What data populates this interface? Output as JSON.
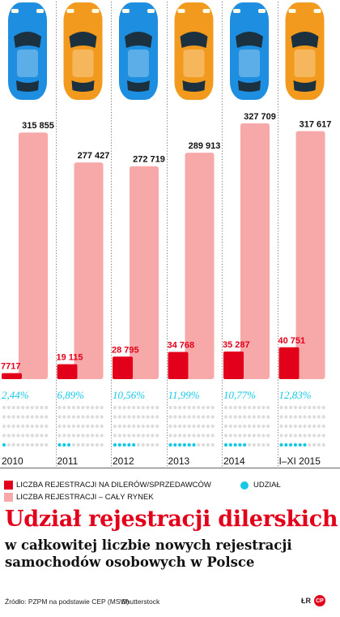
{
  "chart_data": {
    "type": "bar",
    "categories": [
      "2010",
      "2011",
      "2012",
      "2013",
      "2014",
      "I–XI 2015"
    ],
    "series": [
      {
        "name": "LICZBA REJESTRACJI NA DILERÓW/SPRZEDAWCÓW",
        "values": [
          7717,
          19115,
          28795,
          34768,
          35287,
          40751
        ],
        "labels": [
          "7717",
          "19 115",
          "28 795",
          "34 768",
          "35 287",
          "40 751"
        ],
        "color": "#e3001b"
      },
      {
        "name": "LICZBA REJESTRACJI – CAŁY RYNEK",
        "values": [
          315855,
          277427,
          272719,
          289913,
          327709,
          317617
        ],
        "labels": [
          "315 855",
          "277 427",
          "272 719",
          "289 913",
          "327 709",
          "317 617"
        ],
        "color": "#f7a9a9"
      }
    ],
    "share": {
      "name": "UDZIAŁ",
      "values": [
        2.44,
        6.89,
        10.56,
        11.99,
        10.77,
        12.83
      ],
      "labels": [
        "2,44%",
        "6,89%",
        "10,56%",
        "11,99%",
        "10,77%",
        "12,83%"
      ],
      "color": "#14c8e6"
    },
    "ylim": [
      0,
      340000
    ],
    "car_colors": [
      "#1e8fe0",
      "#f29a1e",
      "#1e8fe0",
      "#f29a1e",
      "#1e8fe0",
      "#f29a1e"
    ],
    "grid": false,
    "legend_position": "bottom"
  },
  "legend": {
    "dealer": "LICZBA REJESTRACJI NA DILERÓW/SPRZEDAWCÓW",
    "market": "LICZBA REJESTRACJI – CAŁY RYNEK",
    "share": "UDZIAŁ"
  },
  "title": "Udział rejestracji dilerskich",
  "subtitle_line1": "w całkowitej liczbie nowych rejestracji",
  "subtitle_line2": "samochodów osobowych w Polsce",
  "source": "Źródło: PZPM na podstawie CEP (MSW)",
  "photo_credit": "Shutterstock",
  "logo_text": "ŁR",
  "logo_badge": "CP",
  "colors": {
    "red": "#e3001b",
    "pink": "#f7a9a9",
    "cyan": "#14c8e6",
    "dots": "#dcdcdc"
  }
}
